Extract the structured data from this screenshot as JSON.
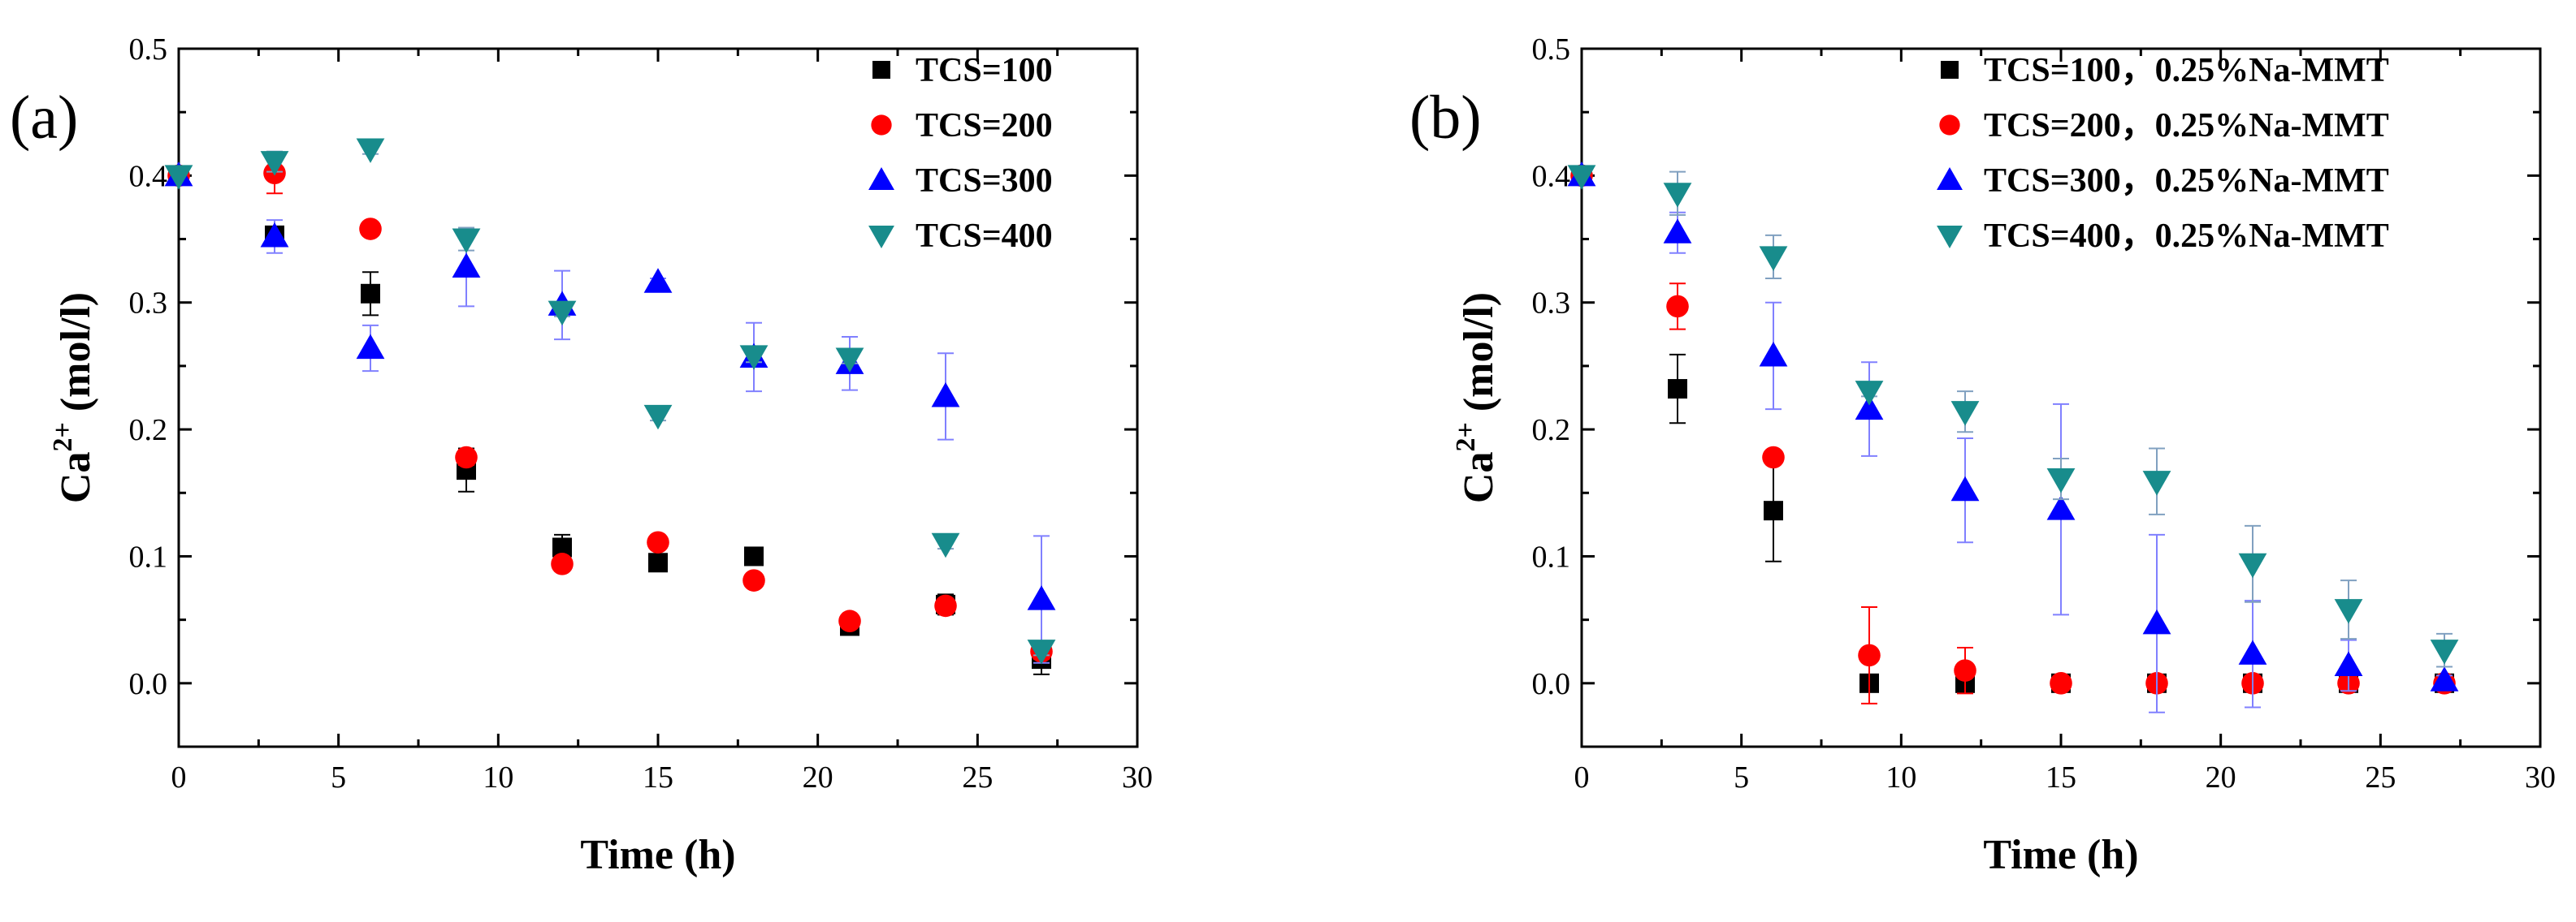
{
  "chart_data": [
    {
      "panel": "(a)",
      "type": "scatter",
      "xlabel": "Time (h)",
      "ylabel": {
        "base": "Ca",
        "sup": "2+",
        "rest": " (mol/l)"
      },
      "xlim": [
        0,
        30
      ],
      "ylim": [
        -0.05,
        0.5
      ],
      "xticks": [
        0,
        5,
        10,
        15,
        20,
        25,
        30
      ],
      "xtick_labels": [
        "0",
        "5",
        "10",
        "15",
        "20",
        "25",
        "30"
      ],
      "yticks": [
        0.0,
        0.1,
        0.2,
        0.3,
        0.4,
        0.5
      ],
      "ytick_labels": [
        "0.0",
        "0.1",
        "0.2",
        "0.3",
        "0.4",
        "0.5"
      ],
      "legend_position": "top-right",
      "series": [
        {
          "name": "TCS=100",
          "marker": "square",
          "color": "#000000",
          "errColor": "#000000",
          "x": [
            0,
            3,
            6,
            9,
            12,
            15,
            18,
            21,
            24,
            27
          ],
          "y": [
            0.4,
            0.353,
            0.307,
            0.168,
            0.107,
            0.095,
            0.1,
            0.045,
            0.062,
            0.019
          ],
          "err": [
            0,
            0.006,
            0.017,
            0.017,
            0.01,
            0.004,
            0.004,
            0.004,
            0.008,
            0.012
          ]
        },
        {
          "name": "TCS=200",
          "marker": "circle",
          "color": "#ff0000",
          "errColor": "#ff0000",
          "x": [
            0,
            3,
            6,
            9,
            12,
            15,
            18,
            21,
            24,
            27
          ],
          "y": [
            0.4,
            0.402,
            0.358,
            0.178,
            0.094,
            0.111,
            0.081,
            0.049,
            0.061,
            0.025
          ],
          "err": [
            0,
            0.016,
            0.003,
            0.006,
            0.004,
            0.003,
            0.003,
            0.003,
            0.004,
            0.006
          ]
        },
        {
          "name": "TCS=300",
          "marker": "triangle-up",
          "color": "#0000ff",
          "errColor": "#8080ff",
          "x": [
            0,
            3,
            6,
            9,
            12,
            15,
            18,
            21,
            24,
            27
          ],
          "y": [
            0.4,
            0.352,
            0.264,
            0.328,
            0.298,
            0.316,
            0.257,
            0.252,
            0.226,
            0.066
          ],
          "err": [
            0,
            0.013,
            0.018,
            0.031,
            0.027,
            0.003,
            0.027,
            0.021,
            0.034,
            0.05
          ]
        },
        {
          "name": "TCS=400",
          "marker": "triangle-down",
          "color": "#188c8c",
          "errColor": "#80a0c0",
          "x": [
            0,
            3,
            6,
            9,
            12,
            15,
            18,
            21,
            24,
            27
          ],
          "y": [
            0.4,
            0.411,
            0.421,
            0.35,
            0.293,
            0.211,
            0.258,
            0.256,
            0.11,
            0.026
          ],
          "err": [
            0,
            0.008,
            0.004,
            0.009,
            0.004,
            0.004,
            0.005,
            0.004,
            0.004,
            0.004
          ]
        }
      ]
    },
    {
      "panel": "(b)",
      "type": "scatter",
      "xlabel": "Time (h)",
      "ylabel": {
        "base": "Ca",
        "sup": "2+",
        "rest": " (mol/l)"
      },
      "xlim": [
        0,
        30
      ],
      "ylim": [
        -0.05,
        0.5
      ],
      "xticks": [
        0,
        5,
        10,
        15,
        20,
        25,
        30
      ],
      "xtick_labels": [
        "0",
        "5",
        "10",
        "15",
        "20",
        "25",
        "30"
      ],
      "yticks": [
        0.0,
        0.1,
        0.2,
        0.3,
        0.4,
        0.5
      ],
      "ytick_labels": [
        "0.0",
        "0.1",
        "0.2",
        "0.3",
        "0.4",
        "0.5"
      ],
      "legend_position": "top-right",
      "series": [
        {
          "name": "TCS=100，0.25%Na-MMT",
          "marker": "square",
          "color": "#000000",
          "errColor": "#000000",
          "x": [
            0,
            3,
            6,
            9,
            12,
            15,
            18,
            21,
            24,
            27
          ],
          "y": [
            0.4,
            0.232,
            0.136,
            0.0,
            0.0,
            0.0,
            0.0,
            0.0,
            0.0,
            0.0
          ],
          "err": [
            0,
            0.027,
            0.04,
            0.003,
            0.003,
            0.003,
            0.003,
            0.003,
            0.003,
            0.003
          ]
        },
        {
          "name": "TCS=200，0.25%Na-MMT",
          "marker": "circle",
          "color": "#ff0000",
          "errColor": "#ff0000",
          "x": [
            0,
            3,
            6,
            9,
            12,
            15,
            18,
            21,
            24,
            27
          ],
          "y": [
            0.4,
            0.297,
            0.178,
            0.022,
            0.01,
            0.0,
            0.0,
            0.0,
            0.0,
            0.0
          ],
          "err": [
            0,
            0.018,
            0.004,
            0.038,
            0.018,
            0.003,
            0.003,
            0.003,
            0.003,
            0.003
          ]
        },
        {
          "name": "TCS=300，0.25%Na-MMT",
          "marker": "triangle-up",
          "color": "#0000ff",
          "errColor": "#8080ff",
          "x": [
            0,
            3,
            6,
            9,
            12,
            15,
            18,
            21,
            24,
            27
          ],
          "y": [
            0.4,
            0.355,
            0.258,
            0.216,
            0.152,
            0.137,
            0.047,
            0.023,
            0.014,
            0.002
          ],
          "err": [
            0,
            0.016,
            0.042,
            0.037,
            0.041,
            0.083,
            0.07,
            0.042,
            0.02,
            0.004
          ]
        },
        {
          "name": "TCS=400，0.25%Na-MMT",
          "marker": "triangle-down",
          "color": "#188c8c",
          "errColor": "#80a0c0",
          "x": [
            0,
            3,
            6,
            9,
            12,
            15,
            18,
            21,
            24,
            27
          ],
          "y": [
            0.4,
            0.386,
            0.336,
            0.23,
            0.214,
            0.161,
            0.159,
            0.094,
            0.058,
            0.026
          ],
          "err": [
            0,
            0.017,
            0.017,
            0.004,
            0.016,
            0.016,
            0.026,
            0.03,
            0.023,
            0.013
          ]
        }
      ]
    }
  ]
}
